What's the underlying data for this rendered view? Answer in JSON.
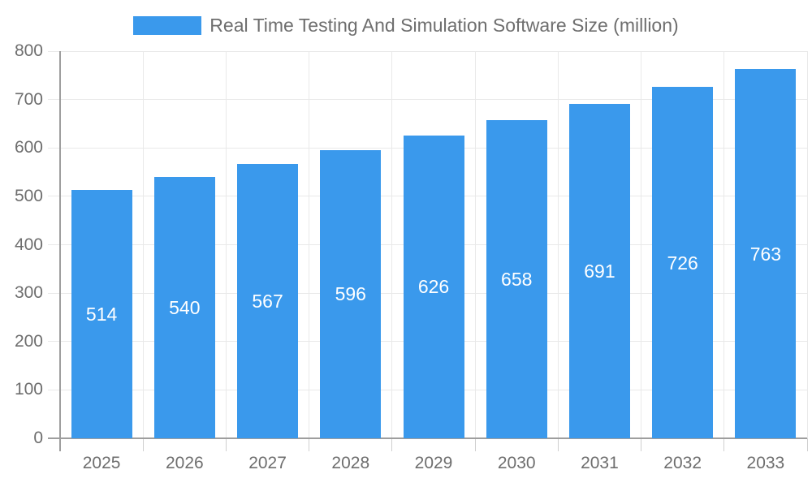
{
  "legend": {
    "label": "Real Time Testing And Simulation Software Size (million)"
  },
  "chart_data": {
    "type": "bar",
    "title": "Real Time Testing And Simulation Software Size (million)",
    "categories": [
      "2025",
      "2026",
      "2027",
      "2028",
      "2029",
      "2030",
      "2031",
      "2032",
      "2033"
    ],
    "values": [
      514,
      540,
      567,
      596,
      626,
      658,
      691,
      726,
      763
    ],
    "value_labels": [
      "514",
      "540",
      "567",
      "596",
      "626",
      "658",
      "691",
      "726",
      "763"
    ],
    "xlabel": "",
    "ylabel": "",
    "ylim": [
      0,
      800
    ],
    "ytick_step": 100,
    "ytick_labels": [
      "0",
      "100",
      "200",
      "300",
      "400",
      "500",
      "600",
      "700",
      "800"
    ],
    "grid": true,
    "legend_position": "top"
  },
  "colors": {
    "bar": "#3A99EC",
    "grid": "#E9E9E9",
    "axis": "#9E9E9E",
    "tick": "#CFCFCF",
    "text": "#6E6E6E",
    "value_label": "#FFFFFF",
    "background": "#FFFFFF"
  }
}
